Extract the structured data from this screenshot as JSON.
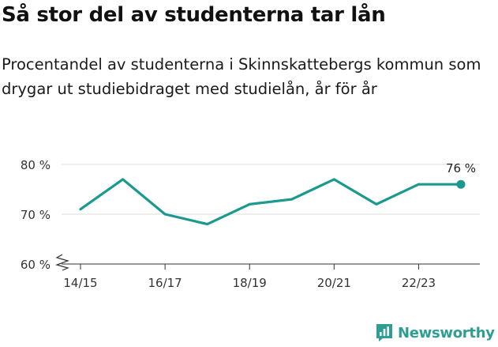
{
  "header": {
    "title": "Så stor del av studenterna tar lån",
    "subtitle": "Procentandel av studenterna i Skinnskattebergs kommun som drygar ut studiebidraget med studielån, år för år"
  },
  "colors": {
    "line": "#1a9a8e",
    "grid": "#dddddd",
    "axis": "#333333",
    "brand": "#2e9e93"
  },
  "chart_data": {
    "type": "line",
    "x": [
      "14/15",
      "15/16",
      "16/17",
      "17/18",
      "18/19",
      "19/20",
      "20/21",
      "21/22",
      "22/23",
      "23/24"
    ],
    "x_tick_labels": [
      "14/15",
      "16/17",
      "18/19",
      "20/21",
      "22/23"
    ],
    "series": [
      {
        "values": [
          71,
          77,
          70,
          68,
          72,
          73,
          77,
          72,
          76,
          76
        ]
      }
    ],
    "y_ticks": [
      60,
      70,
      80
    ],
    "y_tick_labels": [
      "60 %",
      "70 %",
      "80 %"
    ],
    "ylim": [
      60,
      80
    ],
    "y_axis_break": true,
    "grid": true,
    "last_value_label": "76 %",
    "xlabel": "",
    "ylabel": ""
  },
  "footer": {
    "logo_text": "Newsworthy",
    "logo_icon": "newsworthy-bar-chart-icon"
  }
}
